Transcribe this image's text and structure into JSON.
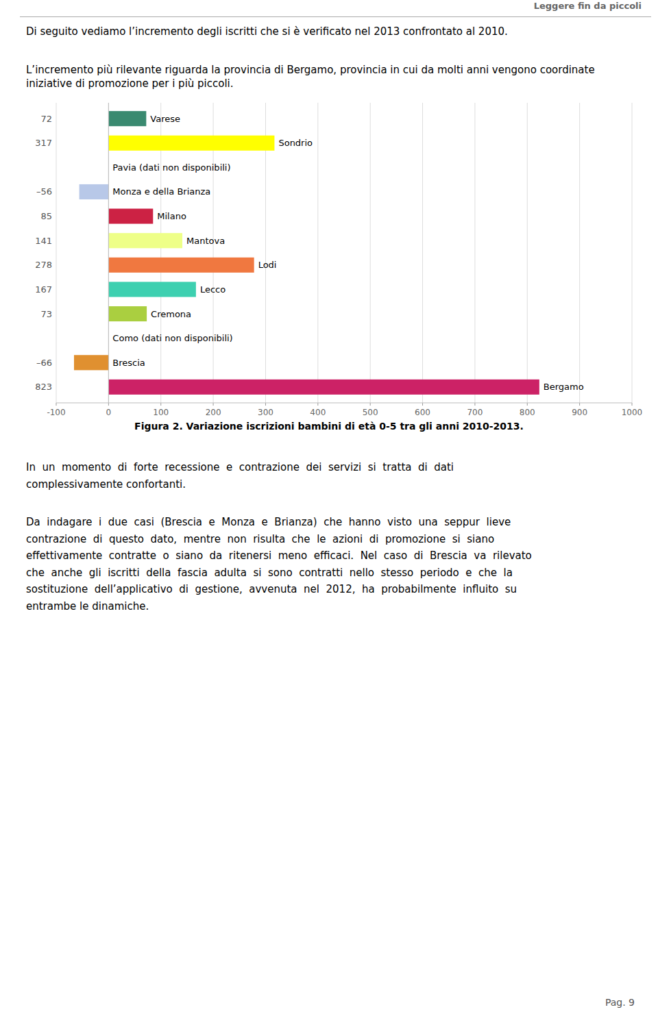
{
  "header": "Leggere fin da piccoli",
  "intro": [
    "Di seguito vediamo l’incremento degli iscritti che si è verificato nel 2013 confrontato al 2010.",
    "L’incremento più rilevante riguarda la provincia di Bergamo, provincia in cui da molti anni vengono coordinate iniziative di promozione per i più piccoli."
  ],
  "chart_data": {
    "type": "bar",
    "orientation": "horizontal",
    "title": "Figura 2. Variazione iscrizioni bambini di età 0-5 tra gli anni 2010-2013.",
    "categories": [
      "Varese",
      "Sondrio",
      "Pavia (dati non disponibili)",
      "Monza e della Brianza",
      "Milano",
      "Mantova",
      "Lodi",
      "Lecco",
      "Cremona",
      "Como (dati non disponibili)",
      "Brescia",
      "Bergamo"
    ],
    "values": [
      72,
      317,
      null,
      -56,
      85,
      141,
      278,
      167,
      73,
      null,
      -66,
      823
    ],
    "value_labels": [
      "72",
      "317",
      null,
      "–56",
      "85",
      "141",
      "278",
      "167",
      "73",
      null,
      "–66",
      "823"
    ],
    "data_labels": true,
    "colors": [
      "#3a8a70",
      "#ffff00",
      null,
      "#b8c8e8",
      "#cc2244",
      "#eeff88",
      "#f07840",
      "#3dd0b0",
      "#aacf40",
      null,
      "#e09030",
      "#cc2266"
    ],
    "xlim": [
      -100,
      1000
    ],
    "xticks": [
      -100,
      0,
      100,
      200,
      300,
      400,
      500,
      600,
      700,
      800,
      900,
      1000
    ],
    "grid": true
  },
  "body": [
    [
      "In  un  momento  di  forte  recessione  e  contrazione  dei  servizi  si  tratta  di  dati",
      "complessivamente confortanti."
    ],
    [
      "Da  indagare  i  due  casi  (Brescia  e  Monza  e  Brianza)  che  hanno  visto  una  seppur  lieve",
      "contrazione  di  questo  dato,  mentre  non  risulta  che  le  azioni  di  promozione  si  siano",
      "effettivamente  contratte  o  siano  da  ritenersi  meno  efficaci.  Nel  caso  di  Brescia  va  rilevato",
      "che  anche  gli  iscritti  della  fascia  adulta  si  sono  contratti  nello  stesso  periodo  e  che  la",
      "sostituzione  dell’applicativo  di  gestione,  avvenuta  nel  2012,  ha  probabilmente  influito  su",
      "entrambe le dinamiche."
    ]
  ],
  "page_number": "Pag. 9"
}
